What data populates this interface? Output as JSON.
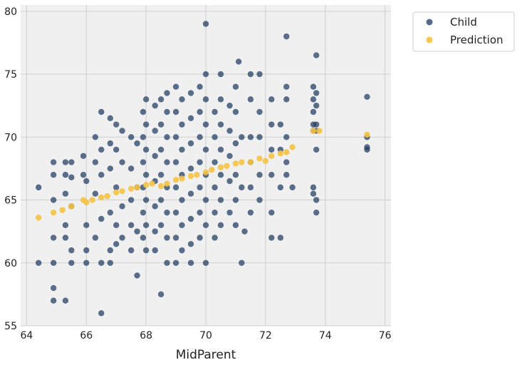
{
  "chart_data": {
    "type": "scatter",
    "title": "",
    "xlabel": "MidParent",
    "ylabel": "",
    "xlim": [
      63.8,
      76.2
    ],
    "ylim": [
      55,
      80.5
    ],
    "x_ticks": [
      "64",
      "66",
      "68",
      "70",
      "72",
      "74",
      "76"
    ],
    "y_ticks": [
      "55",
      "60",
      "65",
      "70",
      "75",
      "80"
    ],
    "grid": true,
    "legend_position": "outside-top-right",
    "colors": {
      "child": "#1f3a60",
      "prediction": "#f5c242",
      "plot_background": "#f0f0f0",
      "grid": "#cfcfcf"
    },
    "series": [
      {
        "name": "Child",
        "points": [
          [
            64.4,
            66.0
          ],
          [
            64.4,
            60.0
          ],
          [
            64.9,
            68.0
          ],
          [
            64.9,
            67.0
          ],
          [
            64.9,
            65.0
          ],
          [
            64.9,
            62.0
          ],
          [
            64.9,
            60.0
          ],
          [
            64.9,
            58.0
          ],
          [
            64.9,
            57.0
          ],
          [
            65.3,
            68.0
          ],
          [
            65.3,
            67.0
          ],
          [
            65.3,
            65.5
          ],
          [
            65.3,
            63.0
          ],
          [
            65.3,
            62.0
          ],
          [
            65.3,
            57.0
          ],
          [
            65.5,
            68.0
          ],
          [
            65.5,
            66.8
          ],
          [
            65.5,
            64.5
          ],
          [
            65.5,
            61.0
          ],
          [
            65.5,
            60.0
          ],
          [
            65.9,
            68.5
          ],
          [
            65.9,
            67.0
          ],
          [
            66.0,
            66.5
          ],
          [
            66.0,
            63.0
          ],
          [
            66.0,
            61.0
          ],
          [
            66.0,
            60.0
          ],
          [
            66.3,
            70.0
          ],
          [
            66.3,
            68.0
          ],
          [
            66.3,
            65.5
          ],
          [
            66.3,
            62.0
          ],
          [
            66.5,
            72.0
          ],
          [
            66.5,
            69.0
          ],
          [
            66.5,
            67.0
          ],
          [
            66.5,
            63.5
          ],
          [
            66.5,
            60.0
          ],
          [
            66.5,
            56.0
          ],
          [
            66.8,
            71.5
          ],
          [
            66.8,
            69.5
          ],
          [
            66.8,
            67.5
          ],
          [
            66.8,
            64.0
          ],
          [
            66.8,
            61.0
          ],
          [
            66.8,
            60.0
          ],
          [
            67.0,
            71.0
          ],
          [
            67.0,
            69.0
          ],
          [
            67.0,
            66.0
          ],
          [
            67.0,
            63.0
          ],
          [
            67.0,
            61.5
          ],
          [
            67.2,
            70.5
          ],
          [
            67.2,
            68.0
          ],
          [
            67.2,
            64.5
          ],
          [
            67.2,
            62.0
          ],
          [
            67.5,
            70.0
          ],
          [
            67.5,
            67.5
          ],
          [
            67.5,
            65.0
          ],
          [
            67.5,
            63.0
          ],
          [
            67.5,
            61.0
          ],
          [
            67.7,
            69.5
          ],
          [
            67.7,
            66.0
          ],
          [
            67.7,
            62.5
          ],
          [
            67.7,
            59.0
          ],
          [
            67.9,
            72.0
          ],
          [
            67.9,
            70.0
          ],
          [
            67.9,
            68.0
          ],
          [
            67.9,
            66.0
          ],
          [
            67.9,
            64.0
          ],
          [
            67.9,
            62.0
          ],
          [
            68.0,
            73.0
          ],
          [
            68.0,
            71.0
          ],
          [
            68.0,
            69.0
          ],
          [
            68.0,
            67.0
          ],
          [
            68.0,
            65.0
          ],
          [
            68.0,
            63.0
          ],
          [
            68.0,
            61.0
          ],
          [
            68.3,
            72.5
          ],
          [
            68.3,
            70.5
          ],
          [
            68.3,
            68.5
          ],
          [
            68.3,
            66.5
          ],
          [
            68.3,
            64.5
          ],
          [
            68.3,
            62.5
          ],
          [
            68.3,
            61.0
          ],
          [
            68.5,
            73.0
          ],
          [
            68.5,
            71.0
          ],
          [
            68.5,
            69.0
          ],
          [
            68.5,
            67.0
          ],
          [
            68.5,
            65.0
          ],
          [
            68.5,
            63.0
          ],
          [
            68.5,
            57.5
          ],
          [
            68.7,
            73.5
          ],
          [
            68.7,
            72.0
          ],
          [
            68.7,
            70.0
          ],
          [
            68.7,
            68.0
          ],
          [
            68.7,
            66.0
          ],
          [
            68.7,
            64.0
          ],
          [
            68.7,
            62.0
          ],
          [
            68.7,
            60.0
          ],
          [
            69.0,
            74.0
          ],
          [
            69.0,
            72.0
          ],
          [
            69.0,
            70.0
          ],
          [
            69.0,
            68.0
          ],
          [
            69.0,
            66.0
          ],
          [
            69.0,
            64.0
          ],
          [
            69.0,
            62.0
          ],
          [
            69.0,
            60.0
          ],
          [
            69.2,
            73.0
          ],
          [
            69.2,
            71.0
          ],
          [
            69.2,
            69.0
          ],
          [
            69.2,
            67.0
          ],
          [
            69.2,
            65.0
          ],
          [
            69.2,
            63.0
          ],
          [
            69.2,
            61.0
          ],
          [
            69.5,
            73.5
          ],
          [
            69.5,
            71.5
          ],
          [
            69.5,
            69.5
          ],
          [
            69.5,
            67.5
          ],
          [
            69.5,
            65.5
          ],
          [
            69.5,
            63.5
          ],
          [
            69.5,
            61.5
          ],
          [
            69.5,
            60.0
          ],
          [
            69.8,
            74.0
          ],
          [
            69.8,
            72.0
          ],
          [
            69.8,
            70.0
          ],
          [
            69.8,
            68.0
          ],
          [
            69.8,
            66.0
          ],
          [
            69.8,
            64.0
          ],
          [
            69.8,
            62.0
          ],
          [
            70.0,
            79.0
          ],
          [
            70.0,
            75.0
          ],
          [
            70.0,
            73.0
          ],
          [
            70.0,
            71.0
          ],
          [
            70.0,
            69.0
          ],
          [
            70.0,
            67.0
          ],
          [
            70.0,
            65.0
          ],
          [
            70.0,
            63.0
          ],
          [
            70.0,
            60.0
          ],
          [
            70.3,
            72.0
          ],
          [
            70.3,
            70.0
          ],
          [
            70.3,
            68.0
          ],
          [
            70.3,
            66.0
          ],
          [
            70.3,
            64.0
          ],
          [
            70.3,
            62.0
          ],
          [
            70.5,
            75.0
          ],
          [
            70.5,
            73.0
          ],
          [
            70.5,
            71.0
          ],
          [
            70.5,
            69.0
          ],
          [
            70.5,
            67.0
          ],
          [
            70.5,
            65.0
          ],
          [
            70.5,
            63.0
          ],
          [
            70.8,
            72.5
          ],
          [
            70.8,
            70.5
          ],
          [
            70.8,
            68.5
          ],
          [
            70.8,
            66.5
          ],
          [
            70.8,
            64.0
          ],
          [
            71.0,
            74.0
          ],
          [
            71.0,
            72.0
          ],
          [
            71.0,
            69.5
          ],
          [
            71.0,
            67.0
          ],
          [
            71.0,
            65.0
          ],
          [
            71.0,
            63.0
          ],
          [
            71.1,
            76.0
          ],
          [
            71.2,
            70.0
          ],
          [
            71.2,
            66.0
          ],
          [
            71.2,
            60.0
          ],
          [
            71.3,
            62.5
          ],
          [
            71.5,
            75.0
          ],
          [
            71.5,
            73.0
          ],
          [
            71.5,
            70.0
          ],
          [
            71.5,
            68.0
          ],
          [
            71.5,
            66.0
          ],
          [
            71.5,
            64.0
          ],
          [
            71.8,
            75.0
          ],
          [
            71.8,
            72.0
          ],
          [
            71.8,
            70.0
          ],
          [
            71.8,
            67.0
          ],
          [
            71.8,
            65.0
          ],
          [
            72.2,
            73.0
          ],
          [
            72.2,
            71.0
          ],
          [
            72.2,
            69.0
          ],
          [
            72.2,
            67.0
          ],
          [
            72.2,
            64.0
          ],
          [
            72.2,
            62.0
          ],
          [
            72.5,
            71.0
          ],
          [
            72.5,
            69.0
          ],
          [
            72.5,
            66.0
          ],
          [
            72.5,
            62.0
          ],
          [
            72.7,
            78.0
          ],
          [
            72.7,
            74.0
          ],
          [
            72.7,
            73.0
          ],
          [
            72.7,
            70.0
          ],
          [
            72.7,
            68.0
          ],
          [
            72.7,
            67.0
          ],
          [
            72.9,
            66.0
          ],
          [
            73.6,
            74.0
          ],
          [
            73.6,
            73.0
          ],
          [
            73.6,
            72.0
          ],
          [
            73.6,
            71.0
          ],
          [
            73.6,
            70.5
          ],
          [
            73.6,
            66.0
          ],
          [
            73.6,
            65.5
          ],
          [
            73.7,
            76.5
          ],
          [
            73.7,
            73.5
          ],
          [
            73.7,
            72.5
          ],
          [
            73.7,
            71.0
          ],
          [
            73.7,
            70.5
          ],
          [
            73.7,
            69.0
          ],
          [
            73.7,
            65.0
          ],
          [
            73.7,
            64.0
          ],
          [
            75.4,
            73.2
          ],
          [
            75.4,
            70.0
          ],
          [
            75.4,
            69.2
          ],
          [
            75.4,
            69.0
          ]
        ]
      },
      {
        "name": "Prediction",
        "points": [
          [
            64.4,
            63.6
          ],
          [
            64.9,
            64.0
          ],
          [
            65.2,
            64.2
          ],
          [
            65.5,
            64.5
          ],
          [
            65.9,
            65.0
          ],
          [
            66.0,
            64.8
          ],
          [
            66.2,
            65.0
          ],
          [
            66.5,
            65.2
          ],
          [
            66.7,
            65.3
          ],
          [
            67.0,
            65.6
          ],
          [
            67.2,
            65.7
          ],
          [
            67.5,
            65.9
          ],
          [
            67.7,
            66.0
          ],
          [
            68.0,
            66.2
          ],
          [
            68.2,
            66.3
          ],
          [
            68.5,
            66.1
          ],
          [
            68.7,
            66.3
          ],
          [
            69.0,
            66.6
          ],
          [
            69.2,
            66.7
          ],
          [
            69.5,
            66.9
          ],
          [
            69.7,
            67.0
          ],
          [
            70.0,
            67.2
          ],
          [
            70.2,
            67.4
          ],
          [
            70.5,
            67.6
          ],
          [
            70.7,
            67.7
          ],
          [
            71.0,
            67.9
          ],
          [
            71.2,
            68.0
          ],
          [
            71.5,
            68.0
          ],
          [
            71.8,
            68.3
          ],
          [
            72.0,
            68.1
          ],
          [
            72.2,
            68.5
          ],
          [
            72.5,
            68.7
          ],
          [
            72.7,
            68.8
          ],
          [
            72.9,
            69.2
          ],
          [
            73.6,
            70.5
          ],
          [
            73.8,
            70.5
          ],
          [
            75.4,
            70.2
          ]
        ]
      }
    ]
  }
}
